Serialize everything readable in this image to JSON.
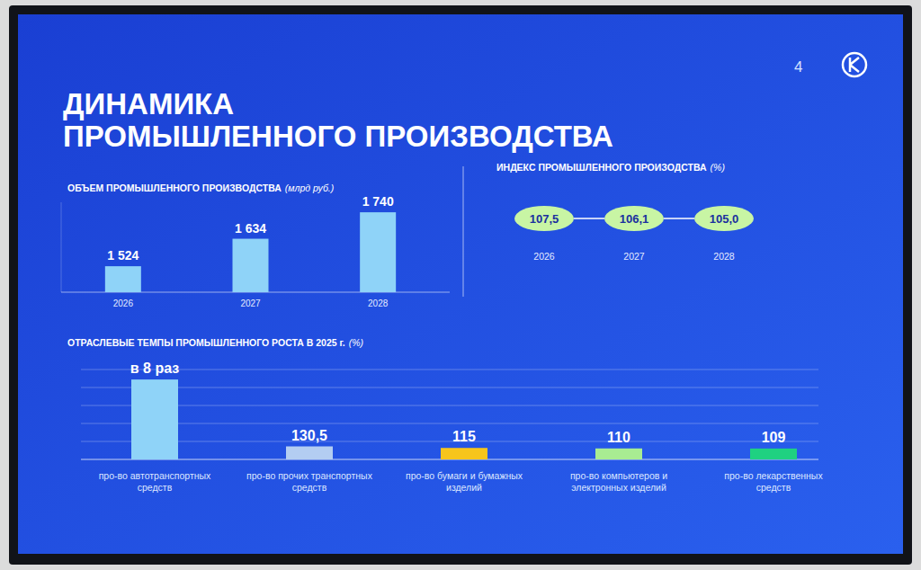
{
  "page": {
    "title": [
      "ДИНАМИКА",
      "ПРОМЫШЛЕННОГО ПРОИЗВОДСТВА"
    ],
    "number": 4
  },
  "chart_data": [
    {
      "type": "bar",
      "title": "ОБЪЕМ ПРОМЫШЛЕННОГО ПРОИЗВОДСТВА",
      "subtitle": "(млрд руб.)",
      "categories": [
        "2026",
        "2027",
        "2028"
      ],
      "values": [
        1524,
        1634,
        1740
      ],
      "value_labels": [
        "1 524",
        "1 634",
        "1 740"
      ],
      "color": "#8fd3f8",
      "ylim": [
        1420,
        1780
      ],
      "data_labels": true,
      "tick_labels": "x",
      "grid": false
    },
    {
      "type": "labels",
      "title": "ИНДЕКС ПРОМЫШЛЕННОГО ПРОИЗОДСТВА",
      "subtitle": "(%)",
      "categories": [
        "2026",
        "2027",
        "2028"
      ],
      "values": [
        107.5,
        106.1,
        105.0
      ],
      "value_labels": [
        "107,5",
        "106,1",
        "105,0"
      ],
      "color": "#c8f5a4",
      "data_labels": true,
      "tick_labels": "x"
    },
    {
      "type": "bar",
      "title": "ОТРАСЛЕВЫЕ ТЕМПЫ ПРОМЫШЛЕННОГО РОСТА В 2025 г.",
      "subtitle": "(%)",
      "categories": [
        "про-во автотранспортных средств",
        "про-во прочих транспортных средств",
        "про-во бумаги и бумажных изделий",
        "про-во компьютеров и электронных изделий",
        "про-во лекарственных средств"
      ],
      "values": [
        800,
        130.5,
        115,
        110,
        109
      ],
      "value_labels": [
        "в 8 раз",
        "130,5",
        "115",
        "110",
        "109"
      ],
      "colors": [
        "#8fd3f8",
        "#b3cdf2",
        "#f7c51c",
        "#a8ec92",
        "#1fd181"
      ],
      "ylim": [
        0,
        900
      ],
      "yticks": [
        0,
        180,
        360,
        540,
        720,
        900
      ],
      "grid": true,
      "data_labels": true,
      "tick_labels": "x"
    }
  ]
}
